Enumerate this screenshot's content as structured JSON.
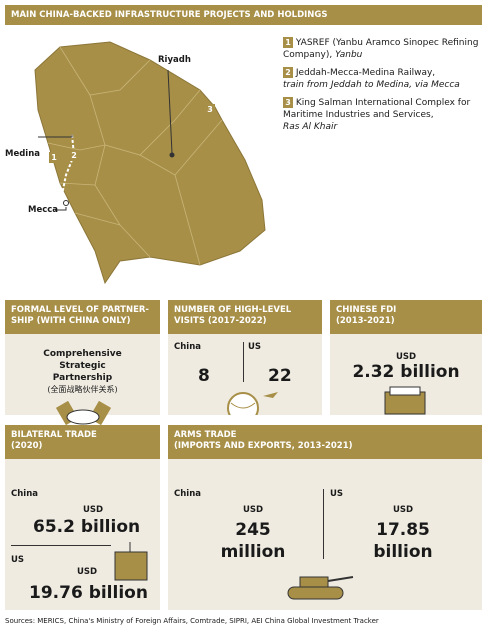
{
  "header": {
    "title": "MAIN CHINA-BACKED INFRASTRUCTURE PROJECTS AND HOLDINGS"
  },
  "map": {
    "cities": [
      "Riyadh",
      "Medina",
      "Mecca"
    ],
    "markers": [
      "1",
      "2",
      "3"
    ]
  },
  "legend": [
    {
      "number": "1",
      "text": "YASREF (Yanbu Aramco Sinopec Refining Company),",
      "location": "Yanbu"
    },
    {
      "number": "2",
      "text": "Jeddah-Mecca-Medina Railway,",
      "location": "train from Jeddah to Medina, via Mecca"
    },
    {
      "number": "3",
      "text": "King Salman International Complex for Maritime Industries and Services,",
      "location": "Ras Al Khair"
    }
  ],
  "panels": {
    "partnership": {
      "title": [
        "FORMAL LEVEL OF PARTNER-",
        "SHIP (WITH CHINA ONLY)"
      ],
      "text": "Comprehensive Strategic Partnership",
      "chinese": "(全面战略伙伴关系)"
    },
    "visits": {
      "title": [
        "NUMBER OF HIGH-LEVEL",
        "VISITS (2017-2022)"
      ],
      "china_label": "China",
      "china": 8,
      "us_label": "US",
      "us": 22
    },
    "fdi": {
      "title": [
        "CHINESE FDI",
        "(2013-2021)"
      ],
      "unit": "USD",
      "amount": "2.32 billion"
    },
    "trade": {
      "title": [
        "BILATERAL TRADE",
        "(2020)"
      ],
      "china_label": "China",
      "china_unit": "USD",
      "china": "65.2 billion",
      "us_label": "US",
      "us_unit": "USD",
      "us": "19.76 billion"
    },
    "arms": {
      "title": [
        "ARMS TRADE",
        "(IMPORTS AND EXPORTS, 2013-2021)"
      ],
      "china_label": "China",
      "china_unit": "USD",
      "china": [
        "245",
        "million"
      ],
      "us_label": "US",
      "us_unit": "USD",
      "us": [
        "17.85",
        "billion"
      ]
    }
  },
  "sources": "Sources: MERICS, China's Ministry of Foreign Affairs, Comtrade, SIPRI, AEI China Global Investment Tracker"
}
